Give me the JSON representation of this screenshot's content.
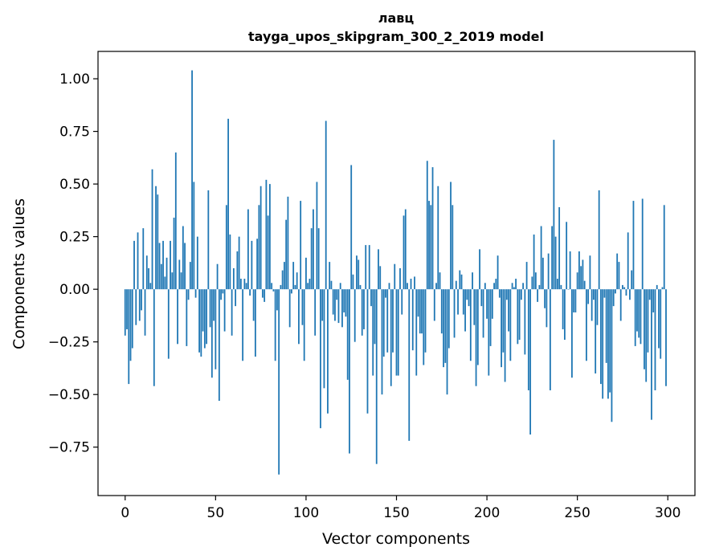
{
  "chart_data": {
    "type": "bar",
    "title": "лавц",
    "subtitle": "tayga_upos_skipgram_300_2_2019 model",
    "xlabel": "Vector components",
    "ylabel": "Components values",
    "xlim": [
      -15,
      315
    ],
    "ylim": [
      -0.98,
      1.13
    ],
    "xticks": [
      0,
      50,
      100,
      150,
      200,
      250,
      300
    ],
    "xtick_labels": [
      "0",
      "50",
      "100",
      "150",
      "200",
      "250",
      "300"
    ],
    "yticks": [
      -0.75,
      -0.5,
      -0.25,
      0.0,
      0.25,
      0.5,
      0.75,
      1.0
    ],
    "ytick_labels": [
      "−0.75",
      "−0.50",
      "−0.25",
      "0.00",
      "0.25",
      "0.50",
      "0.75",
      "1.00"
    ],
    "bar_color": "#1f77b4",
    "grid": false,
    "x": "0..299 (component index)",
    "values": [
      -0.22,
      -0.19,
      -0.45,
      -0.34,
      -0.28,
      0.23,
      -0.17,
      0.27,
      -0.15,
      -0.1,
      0.29,
      -0.22,
      0.16,
      0.1,
      0.03,
      0.57,
      -0.46,
      0.49,
      0.45,
      0.22,
      0.12,
      0.23,
      0.06,
      0.15,
      -0.33,
      0.23,
      0.08,
      0.34,
      0.65,
      -0.26,
      0.14,
      0.08,
      0.3,
      0.22,
      -0.27,
      -0.05,
      0.13,
      1.04,
      0.51,
      -0.04,
      0.25,
      -0.3,
      -0.32,
      -0.2,
      -0.28,
      -0.26,
      0.47,
      -0.18,
      -0.42,
      -0.15,
      -0.38,
      0.12,
      -0.53,
      -0.05,
      -0.02,
      -0.2,
      0.4,
      0.81,
      0.26,
      -0.22,
      0.1,
      -0.08,
      0.18,
      0.25,
      0.05,
      -0.34,
      0.05,
      0.03,
      0.38,
      -0.03,
      0.23,
      -0.15,
      -0.32,
      0.24,
      0.4,
      0.49,
      -0.04,
      -0.06,
      0.52,
      0.35,
      0.5,
      0.03,
      -0.01,
      -0.34,
      -0.1,
      -0.88,
      0.02,
      0.09,
      0.13,
      0.33,
      0.44,
      -0.18,
      -0.02,
      0.13,
      0.02,
      0.08,
      -0.26,
      0.42,
      -0.17,
      -0.34,
      0.15,
      0.03,
      0.05,
      0.29,
      0.38,
      -0.22,
      0.51,
      0.29,
      -0.66,
      -0.15,
      -0.47,
      0.8,
      -0.59,
      0.13,
      0.04,
      -0.12,
      -0.15,
      -0.05,
      -0.16,
      0.03,
      -0.18,
      -0.11,
      -0.13,
      -0.43,
      -0.78,
      0.59,
      0.07,
      -0.25,
      0.16,
      0.14,
      0.02,
      -0.22,
      -0.19,
      0.21,
      -0.59,
      0.21,
      -0.08,
      -0.41,
      -0.26,
      -0.83,
      0.19,
      0.11,
      -0.5,
      -0.32,
      -0.04,
      -0.3,
      0.03,
      -0.46,
      -0.3,
      0.12,
      -0.41,
      -0.41,
      0.1,
      -0.12,
      0.35,
      0.38,
      0.03,
      -0.72,
      0.05,
      -0.29,
      0.06,
      -0.41,
      -0.13,
      -0.21,
      -0.21,
      -0.36,
      -0.3,
      0.61,
      0.42,
      0.4,
      0.58,
      -0.15,
      0.03,
      0.49,
      0.08,
      -0.21,
      -0.37,
      -0.35,
      -0.5,
      -0.28,
      0.51,
      0.4,
      -0.23,
      0.04,
      -0.12,
      0.09,
      0.07,
      -0.12,
      -0.2,
      -0.05,
      -0.08,
      -0.34,
      0.08,
      -0.17,
      -0.46,
      -0.36,
      0.19,
      -0.08,
      -0.23,
      0.03,
      -0.14,
      -0.41,
      -0.27,
      -0.14,
      0.03,
      0.05,
      0.16,
      -0.04,
      -0.37,
      -0.3,
      -0.44,
      -0.05,
      -0.2,
      -0.34,
      0.03,
      0.01,
      0.05,
      -0.26,
      -0.24,
      -0.05,
      0.03,
      -0.31,
      0.13,
      -0.48,
      -0.69,
      0.06,
      0.26,
      0.08,
      -0.06,
      0.02,
      0.3,
      0.15,
      -0.09,
      -0.18,
      0.17,
      -0.48,
      0.3,
      0.71,
      0.25,
      0.05,
      0.39,
      0.02,
      -0.19,
      -0.24,
      0.32,
      0.0,
      0.18,
      -0.42,
      -0.11,
      -0.11,
      0.08,
      0.18,
      0.11,
      0.14,
      0.04,
      -0.34,
      -0.07,
      0.16,
      -0.15,
      -0.05,
      -0.4,
      -0.17,
      0.47,
      -0.45,
      -0.52,
      -0.04,
      -0.35,
      -0.52,
      -0.49,
      -0.63,
      -0.08,
      -0.02,
      0.17,
      0.13,
      -0.15,
      0.02,
      0.01,
      -0.03,
      0.27,
      -0.05,
      0.09,
      0.42,
      -0.27,
      -0.2,
      -0.23,
      -0.26,
      0.43,
      -0.38,
      -0.44,
      -0.3,
      -0.05,
      -0.62,
      -0.11,
      -0.48,
      0.02,
      -0.28,
      -0.33,
      0.01,
      0.4,
      -0.46
    ]
  }
}
